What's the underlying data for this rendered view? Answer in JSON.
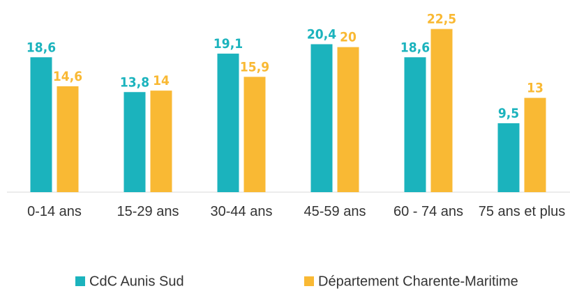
{
  "chart_data": {
    "type": "bar",
    "categories": [
      "0-14 ans",
      "15-29 ans",
      "30-44 ans",
      "45-59 ans",
      "60 - 74 ans",
      "75 ans et plus"
    ],
    "series": [
      {
        "name": "CdC Aunis Sud",
        "color": "#1bb3bd",
        "values": [
          18.6,
          13.8,
          19.1,
          20.4,
          18.6,
          9.5
        ],
        "value_labels": [
          "18,6",
          "13,8",
          "19,1",
          "20,4",
          "18,6",
          "9,5"
        ]
      },
      {
        "name": "Département Charente-Maritime",
        "color": "#f9b934",
        "values": [
          14.6,
          14,
          15.9,
          20,
          22.5,
          13
        ],
        "value_labels": [
          "14,6",
          "14",
          "15,9",
          "20",
          "22,5",
          "13"
        ]
      }
    ],
    "ylim": [
      0,
      24
    ],
    "legend": "bottom"
  }
}
